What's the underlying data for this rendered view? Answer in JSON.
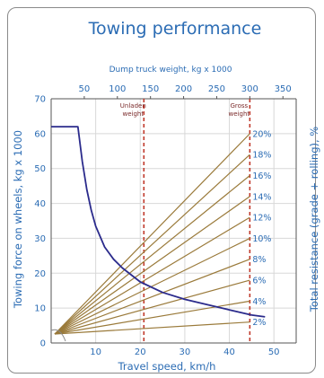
{
  "chart_data": {
    "type": "line",
    "title": "Towing performance",
    "xlabel": "Travel speed, km/h",
    "ylabel": "Towing force on wheels, kg x 1000",
    "y2label": "Total resistance (grade + rolling), %",
    "x2label": "Dump truck weight, kg x 1000",
    "xlim": [
      0,
      55
    ],
    "ylim": [
      0,
      70
    ],
    "x_ticks": [
      10,
      20,
      30,
      40,
      50
    ],
    "y_ticks": [
      0,
      10,
      20,
      30,
      40,
      50,
      60,
      70
    ],
    "top_ticks": [
      50,
      100,
      150,
      200,
      250,
      300,
      350
    ],
    "top_lim": [
      0,
      370
    ],
    "grid": true,
    "reference_lines": [
      {
        "label_line1": "Unladen",
        "label_line2": "weight",
        "weight": 140,
        "color": "#c0392b"
      },
      {
        "label_line1": "Gross",
        "label_line2": "weight",
        "weight": 300,
        "color": "#c0392b"
      }
    ],
    "force_curve": {
      "name": "Towing force",
      "color": "#2b2b8c",
      "points": [
        [
          0,
          62
        ],
        [
          6,
          62
        ],
        [
          7,
          52
        ],
        [
          8,
          44
        ],
        [
          9,
          38
        ],
        [
          10,
          33.5
        ],
        [
          12,
          27.5
        ],
        [
          14,
          24
        ],
        [
          16,
          21.5
        ],
        [
          20,
          17.5
        ],
        [
          25,
          14.5
        ],
        [
          30,
          12.5
        ],
        [
          35,
          11
        ],
        [
          40,
          9.5
        ],
        [
          45,
          8
        ],
        [
          48,
          7.5
        ]
      ]
    },
    "resistance_lines": [
      {
        "label": "2%",
        "weight_at": 300,
        "force": 6
      },
      {
        "label": "4%",
        "weight_at": 300,
        "force": 12
      },
      {
        "label": "6%",
        "weight_at": 300,
        "force": 18
      },
      {
        "label": "8%",
        "weight_at": 300,
        "force": 24
      },
      {
        "label": "10%",
        "weight_at": 300,
        "force": 30
      },
      {
        "label": "12%",
        "weight_at": 300,
        "force": 36
      },
      {
        "label": "14%",
        "weight_at": 300,
        "force": 42
      },
      {
        "label": "16%",
        "weight_at": 300,
        "force": 48
      },
      {
        "label": "18%",
        "weight_at": 300,
        "force": 54
      },
      {
        "label": "20%",
        "weight_at": 300,
        "force": 60
      }
    ],
    "colors": {
      "title": "#2b6cb4",
      "resistance": "#9a7a3a",
      "curve": "#2b2b8c",
      "ref": "#c0392b",
      "grid": "#d8d8d8"
    }
  }
}
